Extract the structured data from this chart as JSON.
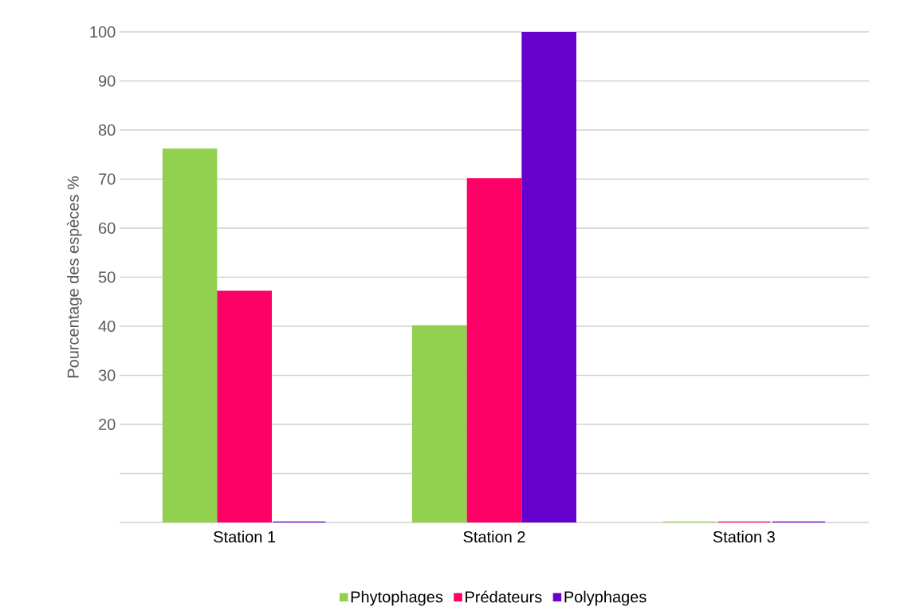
{
  "chart_data": {
    "type": "bar",
    "ylabel": "Pourcentage des espèces %",
    "categories": [
      "Station 1",
      "Station 2",
      "Station 3"
    ],
    "series": [
      {
        "name": "Phytophages",
        "color": "#92d050",
        "values": [
          76,
          40,
          0
        ]
      },
      {
        "name": "Prédateurs",
        "color": "#ff0066",
        "values": [
          47,
          70,
          0
        ]
      },
      {
        "name": "Polyphages",
        "color": "#6600cc",
        "values": [
          0,
          100,
          0
        ]
      }
    ],
    "ylim": [
      0,
      100
    ],
    "yticks": [
      {
        "value": 0,
        "label": null
      },
      {
        "value": 10,
        "label": null
      },
      20,
      30,
      40,
      50,
      60,
      70,
      80,
      90,
      100
    ],
    "grid": "y",
    "legend": "bottom"
  }
}
